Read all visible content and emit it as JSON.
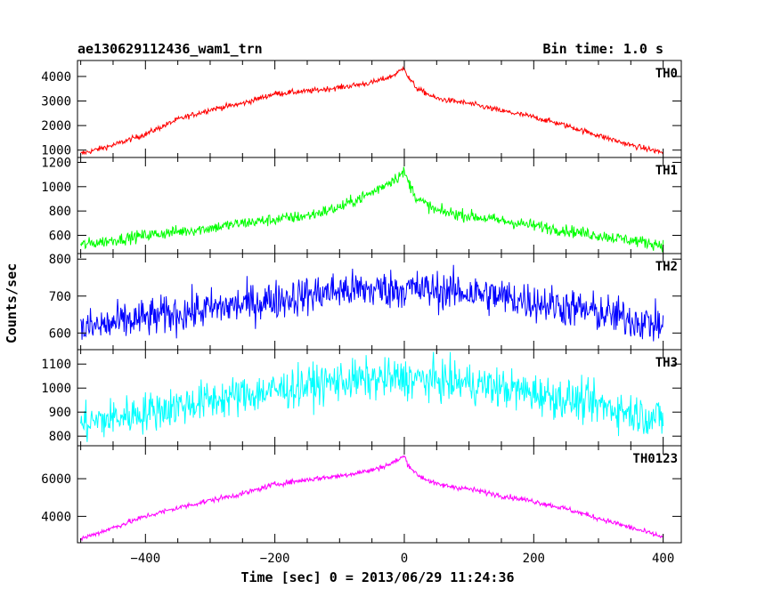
{
  "header": {
    "title": "ae130629112436_wam1_trn",
    "bin_time": "Bin time: 1.0 s"
  },
  "chart_data": {
    "type": "line",
    "title": "ae130629112436_wam1_trn",
    "subtitle": "Bin time: 1.0 s",
    "xlabel": "Time [sec] 0 = 2013/06/29 11:24:36",
    "ylabel": "Counts/sec",
    "xlim": [
      -505,
      428
    ],
    "x_ticks": [
      -400,
      -200,
      0,
      200,
      400
    ],
    "grid": false,
    "panels": [
      {
        "name": "TH0",
        "color": "#ff0000",
        "ylim": [
          700,
          4650
        ],
        "y_ticks": [
          1000,
          2000,
          3000,
          4000
        ],
        "noise": 80,
        "x": [
          -500,
          -450,
          -400,
          -350,
          -300,
          -250,
          -200,
          -150,
          -100,
          -50,
          -20,
          -5,
          0,
          5,
          20,
          50,
          100,
          150,
          200,
          250,
          300,
          350,
          400
        ],
        "y": [
          850,
          1200,
          1650,
          2250,
          2650,
          2900,
          3300,
          3400,
          3550,
          3750,
          4000,
          4250,
          4400,
          4000,
          3500,
          3100,
          2900,
          2600,
          2350,
          2000,
          1600,
          1200,
          900
        ]
      },
      {
        "name": "TH1",
        "color": "#00ff00",
        "ylim": [
          450,
          1240
        ],
        "y_ticks": [
          600,
          800,
          1000,
          1200
        ],
        "noise": 35,
        "x": [
          -500,
          -450,
          -400,
          -350,
          -300,
          -250,
          -200,
          -150,
          -100,
          -50,
          -20,
          -5,
          0,
          5,
          20,
          50,
          100,
          150,
          200,
          250,
          300,
          350,
          400
        ],
        "y": [
          520,
          560,
          600,
          630,
          660,
          700,
          730,
          760,
          830,
          950,
          1050,
          1100,
          1120,
          1050,
          900,
          800,
          760,
          720,
          680,
          640,
          600,
          560,
          520
        ]
      },
      {
        "name": "TH2",
        "color": "#0000ff",
        "ylim": [
          555,
          815
        ],
        "y_ticks": [
          600,
          700,
          800
        ],
        "noise": 38,
        "x": [
          -500,
          -400,
          -300,
          -200,
          -100,
          0,
          100,
          200,
          300,
          400
        ],
        "y": [
          610,
          640,
          665,
          690,
          715,
          720,
          710,
          685,
          655,
          620
        ]
      },
      {
        "name": "TH3",
        "color": "#00ffff",
        "ylim": [
          760,
          1160
        ],
        "y_ticks": [
          800,
          900,
          1000,
          1100
        ],
        "noise": 60,
        "x": [
          -500,
          -400,
          -300,
          -200,
          -100,
          0,
          100,
          200,
          300,
          400
        ],
        "y": [
          850,
          900,
          950,
          990,
          1030,
          1040,
          1020,
          980,
          930,
          870
        ]
      },
      {
        "name": "TH0123",
        "color": "#ff00ff",
        "ylim": [
          2600,
          7750
        ],
        "y_ticks": [
          4000,
          6000
        ],
        "noise": 100,
        "x": [
          -500,
          -450,
          -400,
          -350,
          -300,
          -250,
          -200,
          -150,
          -100,
          -50,
          -20,
          -5,
          0,
          5,
          20,
          50,
          100,
          150,
          200,
          250,
          300,
          350,
          400
        ],
        "y": [
          2800,
          3400,
          4000,
          4450,
          4850,
          5200,
          5700,
          5950,
          6150,
          6450,
          6800,
          7100,
          7200,
          6800,
          6200,
          5700,
          5450,
          5100,
          4800,
          4400,
          3900,
          3400,
          2900
        ]
      }
    ]
  }
}
